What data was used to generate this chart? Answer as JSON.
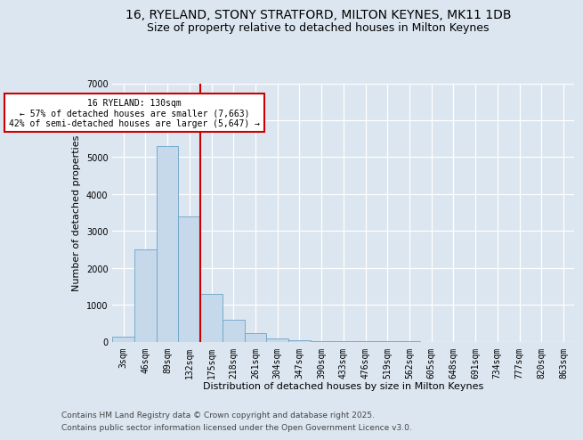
{
  "title_line1": "16, RYELAND, STONY STRATFORD, MILTON KEYNES, MK11 1DB",
  "title_line2": "Size of property relative to detached houses in Milton Keynes",
  "xlabel": "Distribution of detached houses by size in Milton Keynes",
  "ylabel": "Number of detached properties",
  "categories": [
    "3sqm",
    "46sqm",
    "89sqm",
    "132sqm",
    "175sqm",
    "218sqm",
    "261sqm",
    "304sqm",
    "347sqm",
    "390sqm",
    "433sqm",
    "476sqm",
    "519sqm",
    "562sqm",
    "605sqm",
    "648sqm",
    "691sqm",
    "734sqm",
    "777sqm",
    "820sqm",
    "863sqm"
  ],
  "values": [
    130,
    2500,
    5300,
    3400,
    1280,
    600,
    220,
    90,
    25,
    8,
    4,
    2,
    1,
    1,
    0,
    0,
    0,
    0,
    0,
    0,
    0
  ],
  "bar_color": "#c5d9ea",
  "bar_edge_color": "#6ba3c8",
  "vline_x_index": 3,
  "vline_x_offset": 0.5,
  "vline_color": "#cc0000",
  "annotation_title": "16 RYELAND: 130sqm",
  "annotation_line1": "← 57% of detached houses are smaller (7,663)",
  "annotation_line2": "42% of semi-detached houses are larger (5,647) →",
  "annotation_box_color": "#ffffff",
  "annotation_box_edge": "#cc0000",
  "ylim": [
    0,
    7000
  ],
  "yticks": [
    0,
    1000,
    2000,
    3000,
    4000,
    5000,
    6000,
    7000
  ],
  "background_color": "#dce6f0",
  "plot_background": "#dce6f0",
  "footer_line1": "Contains HM Land Registry data © Crown copyright and database right 2025.",
  "footer_line2": "Contains public sector information licensed under the Open Government Licence v3.0.",
  "title_fontsize": 10,
  "subtitle_fontsize": 9,
  "axis_label_fontsize": 8,
  "tick_fontsize": 7,
  "footer_fontsize": 6.5
}
